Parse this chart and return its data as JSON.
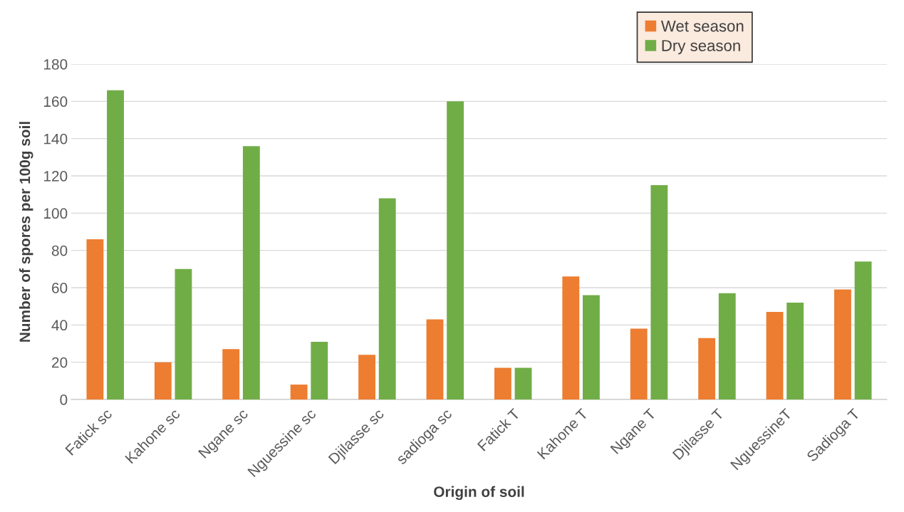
{
  "chart_data": {
    "type": "bar",
    "xlabel": "Origin of soil",
    "ylabel": "Number of spores per 100g soil",
    "categories": [
      "Fatick sc",
      "Kahone sc",
      "Ngane sc",
      "Nguessine sc",
      "Djilasse sc",
      "sadioga sc",
      "Fatick T",
      "Kahone T",
      "Ngane T",
      "Djilasse T",
      "NguessineT",
      "Sadioga T"
    ],
    "series": [
      {
        "name": "Wet season",
        "color": "#ed7d31",
        "values": [
          86,
          20,
          27,
          8,
          24,
          43,
          17,
          66,
          38,
          33,
          47,
          59
        ]
      },
      {
        "name": "Dry season",
        "color": "#70ad47",
        "values": [
          166,
          70,
          136,
          31,
          108,
          160,
          17,
          56,
          115,
          57,
          52,
          74
        ]
      }
    ],
    "ylim": [
      0,
      180
    ],
    "yticks": [
      0,
      20,
      40,
      60,
      80,
      100,
      120,
      140,
      160,
      180
    ],
    "grid": "y",
    "legend": "top right"
  }
}
